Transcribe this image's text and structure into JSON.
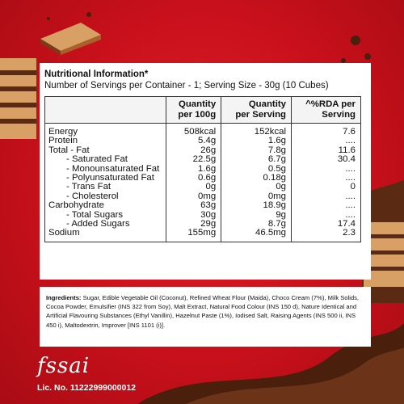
{
  "nutrition": {
    "title": "Nutritional Information*",
    "servings_line": "Number of Servings per Container - 1;  Serving Size - 30g  (10 Cubes)",
    "columns": [
      {
        "line1": "Quantity",
        "line2": "per 100g"
      },
      {
        "line1": "Quantity",
        "line2": "per Serving"
      },
      {
        "line1": "^%RDA per",
        "line2": "Serving"
      }
    ],
    "rows": [
      {
        "label": "Energy",
        "per100": "508kcal",
        "serving": "152kcal",
        "rda": "7.6",
        "indent": false
      },
      {
        "label": "Protein",
        "per100": "5.4g",
        "serving": "1.6g",
        "rda": "....",
        "indent": false
      },
      {
        "label": "Total - Fat",
        "per100": "26g",
        "serving": "7.8g",
        "rda": "11.6",
        "indent": false
      },
      {
        "label": "- Saturated Fat",
        "per100": "22.5g",
        "serving": "6.7g",
        "rda": "30.4",
        "indent": true
      },
      {
        "label": "- Monounsaturated Fat",
        "per100": "1.6g",
        "serving": "0.5g",
        "rda": "....",
        "indent": true
      },
      {
        "label": "- Polyunsaturated Fat",
        "per100": "0.6g",
        "serving": "0.18g",
        "rda": "....",
        "indent": true
      },
      {
        "label": "- Trans Fat",
        "per100": "0g",
        "serving": "0g",
        "rda": "0",
        "indent": true
      },
      {
        "label": "- Cholesterol",
        "per100": "0mg",
        "serving": "0mg",
        "rda": "....",
        "indent": true
      },
      {
        "label": "Carbohydrate",
        "per100": "63g",
        "serving": "18.9g",
        "rda": "....",
        "indent": false
      },
      {
        "label": "- Total Sugars",
        "per100": "30g",
        "serving": "9g",
        "rda": "....",
        "indent": true
      },
      {
        "label": "- Added Sugars",
        "per100": "29g",
        "serving": "8.7g",
        "rda": "17.4",
        "indent": true
      },
      {
        "label": "Sodium",
        "per100": "155mg",
        "serving": "46.5mg",
        "rda": "2.3",
        "indent": false
      }
    ]
  },
  "ingredients": {
    "heading": "Ingredients:",
    "text": " Sugar, Edible Vegetable Oil (Coconut), Refined Wheat Flour (Maida), Choco Cream (7%), Milk Solids, Cocoa Powder, Emulsifier (INS 322 from Soy), Malt Extract, Natural Food Colour (INS 150 d), Nature Identical and Artificial Flavouring Substances (Ethyl Vanillin), Hazelnut Paste (1%), Iodised Salt, Raising Agents (INS 500 ii, INS 450 i), Maltodextrin, Improver [INS 1101 (i)]."
  },
  "footer": {
    "logo_text": "fssai",
    "license": "Lic. No. 11222999000012"
  },
  "colors": {
    "background": "#c8101b",
    "chocolate": "#5a2a12",
    "wafer": "#d9a066"
  }
}
